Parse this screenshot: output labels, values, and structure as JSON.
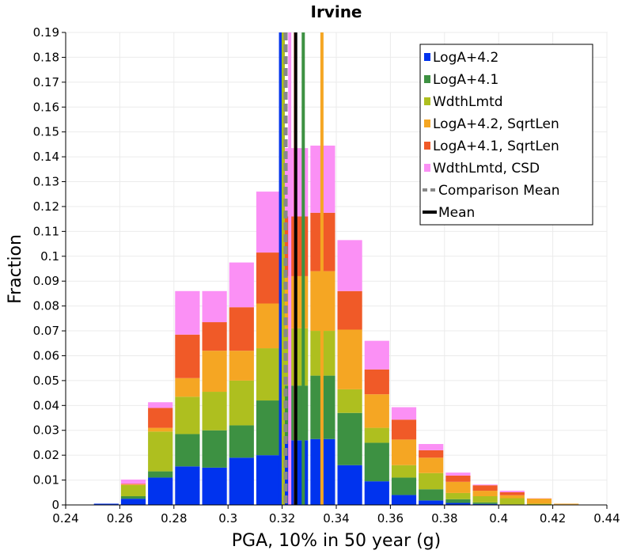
{
  "chart_data": {
    "type": "bar",
    "stacked": true,
    "title": "Irvine",
    "xlabel": "PGA, 10% in 50 year (g)",
    "ylabel": "Fraction",
    "xlim": [
      0.24,
      0.44
    ],
    "ylim": [
      0,
      0.19
    ],
    "xticks": [
      "0.24",
      "0.26",
      "0.28",
      "0.3",
      "0.32",
      "0.34",
      "0.36",
      "0.38",
      "0.4",
      "0.42",
      "0.44"
    ],
    "yticks": [
      "0",
      "0.01",
      "0.02",
      "0.03",
      "0.04",
      "0.05",
      "0.06",
      "0.07",
      "0.08",
      "0.09",
      "0.1",
      "0.11",
      "0.12",
      "0.13",
      "0.14",
      "0.15",
      "0.16",
      "0.17",
      "0.18",
      "0.19"
    ],
    "grid": true,
    "legend_position": "top-right",
    "bin_width": 0.01,
    "bin_centers": [
      0.255,
      0.265,
      0.275,
      0.285,
      0.295,
      0.305,
      0.315,
      0.325,
      0.335,
      0.345,
      0.355,
      0.365,
      0.375,
      0.385,
      0.395,
      0.405,
      0.415,
      0.425
    ],
    "series": [
      {
        "name": "LogA+4.2",
        "color": "#0033ee",
        "values": [
          0.0005,
          0.0025,
          0.011,
          0.0155,
          0.015,
          0.019,
          0.02,
          0.026,
          0.0265,
          0.016,
          0.0095,
          0.004,
          0.0018,
          0.0008,
          0.0004,
          0.0001,
          0.0,
          0.0
        ]
      },
      {
        "name": "LogA+4.1",
        "color": "#3d9142",
        "values": [
          0.0,
          0.001,
          0.0025,
          0.013,
          0.015,
          0.013,
          0.022,
          0.022,
          0.0255,
          0.021,
          0.0155,
          0.007,
          0.0045,
          0.0015,
          0.0006,
          0.0001,
          0.0,
          0.0
        ]
      },
      {
        "name": "WdthLmtd",
        "color": "#aebf1f",
        "values": [
          0.0,
          0.0045,
          0.016,
          0.015,
          0.0155,
          0.018,
          0.021,
          0.023,
          0.018,
          0.0095,
          0.006,
          0.005,
          0.0065,
          0.0025,
          0.0025,
          0.0025,
          0.0005,
          0.0002
        ]
      },
      {
        "name": "LogA+4.2, SqrtLen",
        "color": "#f5a623",
        "values": [
          0.0,
          0.0002,
          0.0015,
          0.0075,
          0.0165,
          0.012,
          0.018,
          0.021,
          0.024,
          0.024,
          0.0135,
          0.0103,
          0.0062,
          0.0045,
          0.0022,
          0.0012,
          0.0021,
          0.0003
        ]
      },
      {
        "name": "LogA+4.1, SqrtLen",
        "color": "#f05a28",
        "values": [
          0.0,
          0.0003,
          0.008,
          0.0175,
          0.0115,
          0.0175,
          0.0205,
          0.024,
          0.0235,
          0.0155,
          0.01,
          0.008,
          0.003,
          0.0025,
          0.0022,
          0.0012,
          0.0,
          0.0
        ]
      },
      {
        "name": "WdthLmtd, CSD",
        "color": "#fb90f5",
        "values": [
          0.0,
          0.0017,
          0.0023,
          0.0175,
          0.0125,
          0.018,
          0.0245,
          0.0275,
          0.027,
          0.0205,
          0.0115,
          0.005,
          0.0025,
          0.0012,
          0.0003,
          0.0006,
          0.0001,
          0.0
        ]
      }
    ],
    "vertical_lines": [
      {
        "name": "LogA+4.2 mean",
        "x": 0.3194,
        "color": "#0033ee",
        "style": "solid"
      },
      {
        "name": "WdthLmtd mean",
        "x": 0.3204,
        "color": "#aebf1f",
        "style": "solid"
      },
      {
        "name": "WdthLmtd, CSD mean",
        "x": 0.3228,
        "color": "#fb90f5",
        "style": "solid"
      },
      {
        "name": "LogA+4.1, SqrtLen mean",
        "x": 0.3249,
        "color": "#f05a28",
        "style": "solid"
      },
      {
        "name": "LogA+4.1 mean",
        "x": 0.3278,
        "color": "#3d9142",
        "style": "solid"
      },
      {
        "name": "LogA+4.2, SqrtLen mean",
        "x": 0.3347,
        "color": "#f5a623",
        "style": "solid"
      },
      {
        "name": "Comparison Mean",
        "x": 0.3213,
        "color": "#888888",
        "style": "dashed"
      },
      {
        "name": "Mean",
        "x": 0.325,
        "color": "#000000",
        "style": "solid"
      }
    ],
    "legend": [
      {
        "label": "LogA+4.2",
        "color": "#0033ee",
        "kind": "box"
      },
      {
        "label": "LogA+4.1",
        "color": "#3d9142",
        "kind": "box"
      },
      {
        "label": "WdthLmtd",
        "color": "#aebf1f",
        "kind": "box"
      },
      {
        "label": "LogA+4.2, SqrtLen",
        "color": "#f5a623",
        "kind": "box"
      },
      {
        "label": "LogA+4.1, SqrtLen",
        "color": "#f05a28",
        "kind": "box"
      },
      {
        "label": "WdthLmtd, CSD",
        "color": "#fb90f5",
        "kind": "box"
      },
      {
        "label": "Comparison Mean",
        "color": "#888888",
        "kind": "dashed"
      },
      {
        "label": "Mean",
        "color": "#000000",
        "kind": "line"
      }
    ]
  }
}
